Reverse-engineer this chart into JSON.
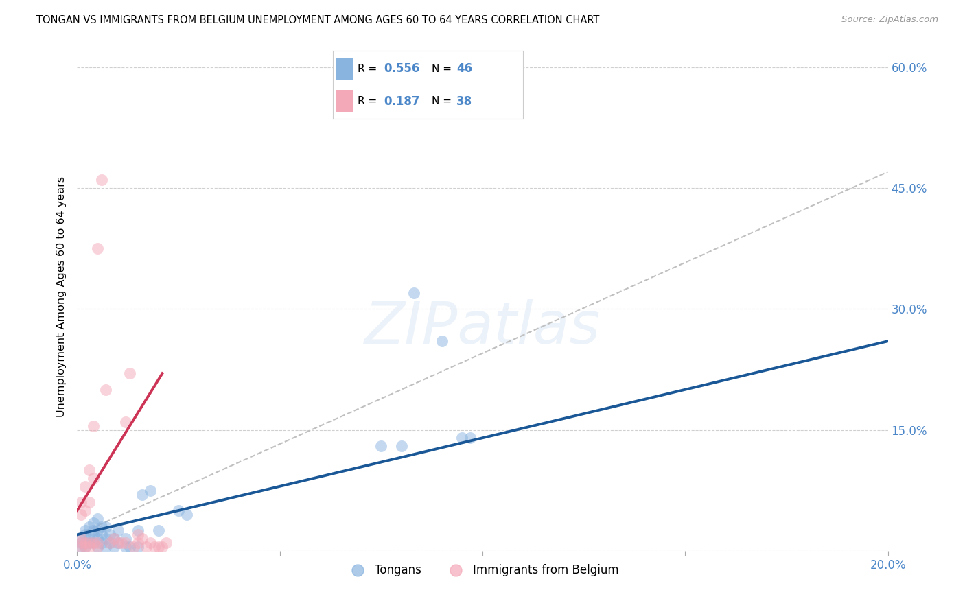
{
  "title": "TONGAN VS IMMIGRANTS FROM BELGIUM UNEMPLOYMENT AMONG AGES 60 TO 64 YEARS CORRELATION CHART",
  "source": "Source: ZipAtlas.com",
  "ylabel": "Unemployment Among Ages 60 to 64 years",
  "watermark": "ZIPatlas",
  "xlim": [
    0.0,
    0.2
  ],
  "ylim": [
    0.0,
    0.63
  ],
  "blue_R": 0.556,
  "blue_N": 46,
  "pink_R": 0.187,
  "pink_N": 38,
  "blue_color": "#8ab4e0",
  "pink_color": "#f4a9b8",
  "blue_line_color": "#1a5796",
  "pink_line_color": "#cc3355",
  "gray_dash_color": "#c0c0c0",
  "blue_line": [
    [
      0.0,
      0.02
    ],
    [
      0.2,
      0.26
    ]
  ],
  "pink_line": [
    [
      0.0,
      0.05
    ],
    [
      0.021,
      0.22
    ]
  ],
  "gray_line": [
    [
      0.0,
      0.02
    ],
    [
      0.2,
      0.47
    ]
  ],
  "blue_points": [
    [
      0.001,
      0.005
    ],
    [
      0.001,
      0.01
    ],
    [
      0.001,
      0.015
    ],
    [
      0.002,
      0.005
    ],
    [
      0.002,
      0.01
    ],
    [
      0.002,
      0.02
    ],
    [
      0.002,
      0.025
    ],
    [
      0.003,
      0.01
    ],
    [
      0.003,
      0.015
    ],
    [
      0.003,
      0.03
    ],
    [
      0.004,
      0.01
    ],
    [
      0.004,
      0.02
    ],
    [
      0.004,
      0.025
    ],
    [
      0.004,
      0.035
    ],
    [
      0.005,
      0.005
    ],
    [
      0.005,
      0.015
    ],
    [
      0.005,
      0.025
    ],
    [
      0.005,
      0.04
    ],
    [
      0.006,
      0.01
    ],
    [
      0.006,
      0.02
    ],
    [
      0.006,
      0.03
    ],
    [
      0.007,
      0.005
    ],
    [
      0.007,
      0.015
    ],
    [
      0.007,
      0.03
    ],
    [
      0.008,
      0.01
    ],
    [
      0.008,
      0.02
    ],
    [
      0.009,
      0.015
    ],
    [
      0.009,
      0.005
    ],
    [
      0.01,
      0.01
    ],
    [
      0.01,
      0.025
    ],
    [
      0.012,
      0.005
    ],
    [
      0.012,
      0.015
    ],
    [
      0.013,
      0.005
    ],
    [
      0.015,
      0.005
    ],
    [
      0.015,
      0.025
    ],
    [
      0.016,
      0.07
    ],
    [
      0.018,
      0.075
    ],
    [
      0.02,
      0.025
    ],
    [
      0.025,
      0.05
    ],
    [
      0.027,
      0.045
    ],
    [
      0.075,
      0.13
    ],
    [
      0.08,
      0.13
    ],
    [
      0.083,
      0.32
    ],
    [
      0.09,
      0.26
    ],
    [
      0.095,
      0.14
    ],
    [
      0.097,
      0.14
    ]
  ],
  "pink_points": [
    [
      0.001,
      0.005
    ],
    [
      0.001,
      0.01
    ],
    [
      0.001,
      0.015
    ],
    [
      0.001,
      0.06
    ],
    [
      0.002,
      0.005
    ],
    [
      0.002,
      0.01
    ],
    [
      0.002,
      0.08
    ],
    [
      0.003,
      0.005
    ],
    [
      0.003,
      0.01
    ],
    [
      0.003,
      0.1
    ],
    [
      0.004,
      0.01
    ],
    [
      0.004,
      0.155
    ],
    [
      0.005,
      0.005
    ],
    [
      0.005,
      0.01
    ],
    [
      0.005,
      0.375
    ],
    [
      0.006,
      0.46
    ],
    [
      0.007,
      0.2
    ],
    [
      0.008,
      0.01
    ],
    [
      0.009,
      0.015
    ],
    [
      0.01,
      0.01
    ],
    [
      0.011,
      0.01
    ],
    [
      0.012,
      0.01
    ],
    [
      0.012,
      0.16
    ],
    [
      0.013,
      0.22
    ],
    [
      0.014,
      0.005
    ],
    [
      0.015,
      0.01
    ],
    [
      0.015,
      0.02
    ],
    [
      0.016,
      0.015
    ],
    [
      0.017,
      0.005
    ],
    [
      0.018,
      0.01
    ],
    [
      0.019,
      0.005
    ],
    [
      0.02,
      0.005
    ],
    [
      0.021,
      0.005
    ],
    [
      0.022,
      0.01
    ],
    [
      0.003,
      0.06
    ],
    [
      0.004,
      0.09
    ],
    [
      0.002,
      0.05
    ],
    [
      0.001,
      0.045
    ]
  ]
}
